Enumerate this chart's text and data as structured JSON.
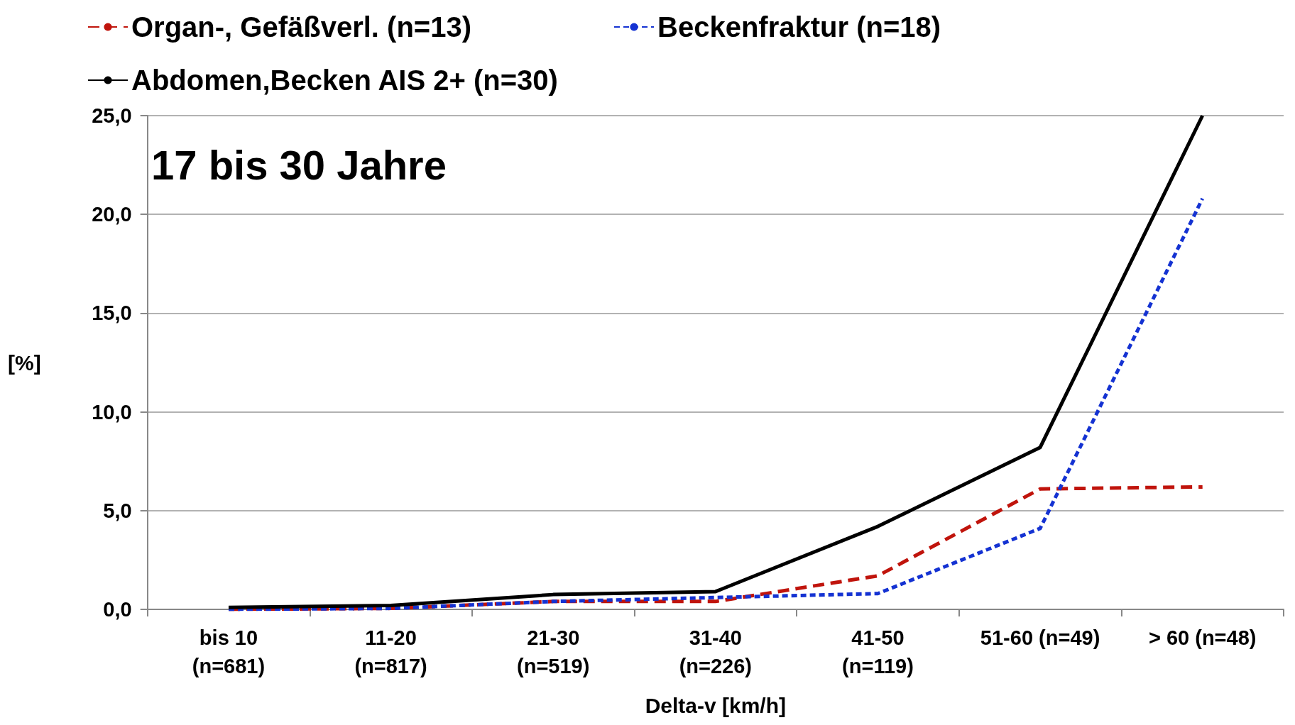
{
  "chart_data": {
    "type": "line",
    "title": "17 bis 30 Jahre",
    "xlabel": "Delta-v [km/h]",
    "ylabel": "[%]",
    "categories": [
      "bis 10\n(n=681)",
      "11-20\n(n=817)",
      "21-30\n(n=519)",
      "31-40\n(n=226)",
      "41-50\n(n=119)",
      "51-60 (n=49)",
      "> 60 (n=48)"
    ],
    "series": [
      {
        "name": "Organ-, Gefäßverl. (n=13)",
        "color": "#c0140c",
        "line_style": "dashed",
        "values": [
          0,
          0.05,
          0.4,
          0.4,
          1.7,
          6.1,
          6.2
        ]
      },
      {
        "name": "Beckenfraktur (n=18)",
        "color": "#1432d2",
        "line_style": "dotted",
        "values": [
          0,
          0.05,
          0.4,
          0.6,
          0.8,
          4.1,
          20.8
        ]
      },
      {
        "name": "Abdomen,Becken AIS 2+ (n=30)",
        "color": "#000000",
        "line_style": "solid",
        "values": [
          0.1,
          0.2,
          0.75,
          0.9,
          4.2,
          8.2,
          25.0
        ]
      }
    ],
    "ylim": [
      0,
      25
    ],
    "yticks": [
      {
        "value": 0,
        "label": "0,0"
      },
      {
        "value": 5,
        "label": "5,0"
      },
      {
        "value": 10,
        "label": "10,0"
      },
      {
        "value": 15,
        "label": "15,0"
      },
      {
        "value": 20,
        "label": "20,0"
      },
      {
        "value": 25,
        "label": "25,0"
      }
    ],
    "grid": "y",
    "legend": "top left",
    "marker": "none"
  }
}
